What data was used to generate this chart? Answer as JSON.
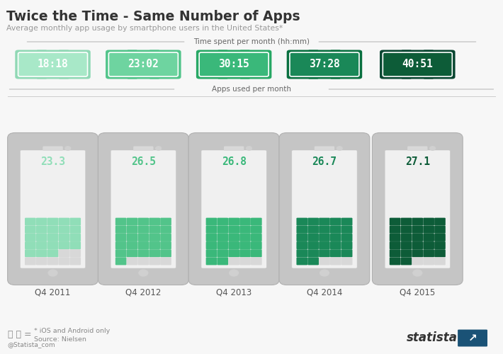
{
  "title": "Twice the Time - Same Number of Apps",
  "subtitle": "Average monthly app usage by smartphone users in the United States*",
  "time_label": "Time spent per month (hh:mm)",
  "apps_label": "Apps used per month",
  "quarters": [
    "Q4 2011",
    "Q4 2012",
    "Q4 2013",
    "Q4 2014",
    "Q4 2015"
  ],
  "times": [
    "18:18",
    "23:02",
    "30:15",
    "37:28",
    "40:51"
  ],
  "apps_values": [
    "23.3",
    "26.5",
    "26.8",
    "26.7",
    "27.1"
  ],
  "clock_bg_colors": [
    "#a8e8c8",
    "#6ed4a0",
    "#3ab87a",
    "#1a8858",
    "#0d5c38"
  ],
  "clock_tab_colors": [
    "#90d8b5",
    "#52c48a",
    "#28a865",
    "#0a7040",
    "#084530"
  ],
  "grid_colors": [
    "#90deb8",
    "#52c48a",
    "#3ab87a",
    "#1a8858",
    "#0d5c38"
  ],
  "grid_empty_color": "#d8d8d8",
  "phone_body_color": "#c5c5c5",
  "total_cells": 30,
  "filled_cells": [
    23,
    26,
    27,
    27,
    27
  ],
  "bg_color": "#f7f7f7",
  "footnote_line1": "* iOS and Android only",
  "footnote_line2": "Source: Nielsen",
  "social": "@Statista_com"
}
